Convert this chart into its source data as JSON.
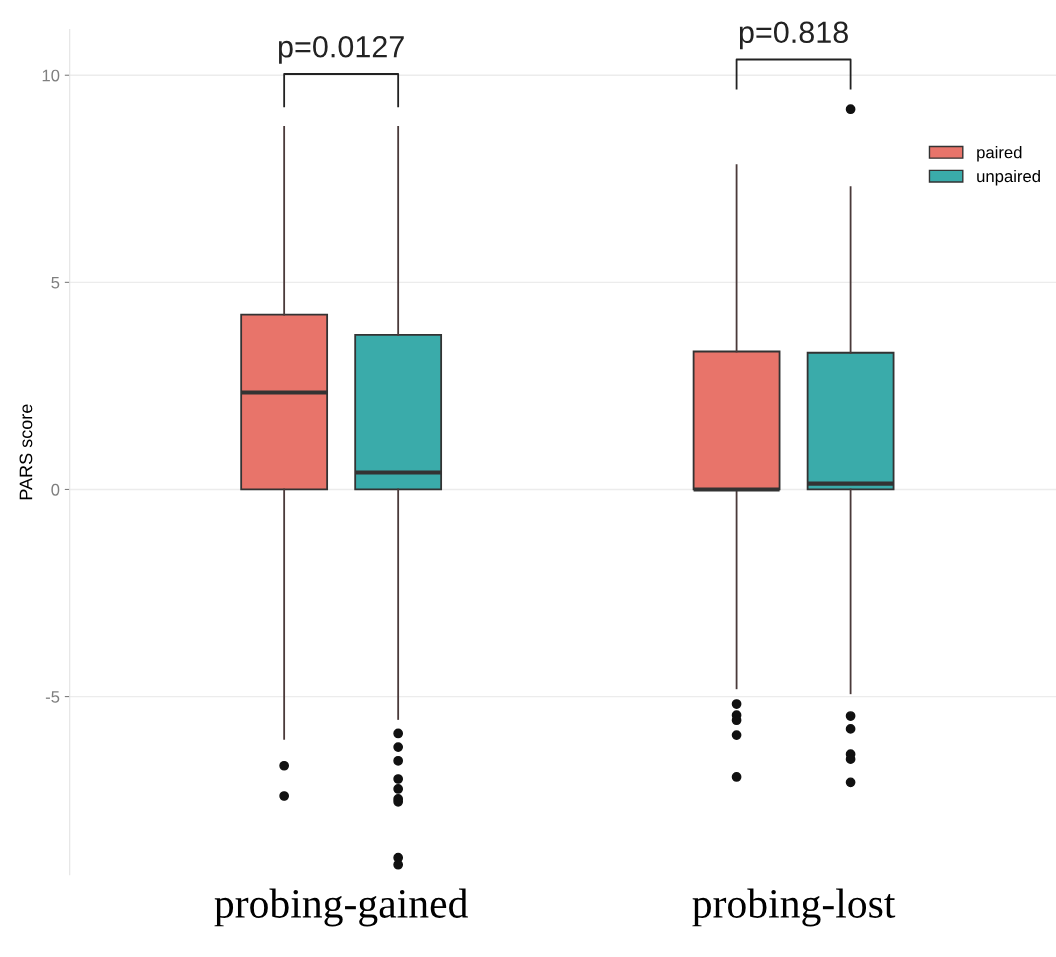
{
  "chart_data": {
    "type": "box",
    "ylabel": "PARS score",
    "categories": [
      "probing-gained",
      "probing-lost"
    ],
    "series": [
      {
        "name": "paired",
        "color": "#e8746a",
        "boxes": [
          {
            "low": -6.02,
            "q1": 0,
            "median": 2.34,
            "q3": 4.22,
            "high": 8.75,
            "outliers": [
              -6.67,
              -7.4
            ]
          },
          {
            "low": -4.8,
            "q1": 0,
            "median": 0.0,
            "q3": 3.33,
            "high": 7.83,
            "outliers": [
              -5.18,
              -5.45,
              -5.57,
              -5.93,
              -6.94
            ]
          }
        ]
      },
      {
        "name": "unpaired",
        "color": "#3aabaa",
        "boxes": [
          {
            "low": -5.54,
            "q1": 0,
            "median": 0.41,
            "q3": 3.73,
            "high": 8.75,
            "outliers": [
              -5.89,
              -6.22,
              -6.55,
              -6.99,
              -7.23,
              -7.47,
              -7.54,
              -8.89,
              -9.06
            ]
          },
          {
            "low": -4.92,
            "q1": 0,
            "median": 0.14,
            "q3": 3.3,
            "high": 7.3,
            "outliers": [
              -5.47,
              -5.78,
              -6.39,
              -6.51,
              -7.07,
              9.18
            ]
          }
        ]
      }
    ],
    "annotations": [
      "p=0.0127",
      "p=0.818"
    ],
    "ylim": [
      -9.3,
      11.1
    ],
    "yticks": [
      -5,
      0,
      5,
      10
    ],
    "grid": "y",
    "legend": "top right"
  }
}
